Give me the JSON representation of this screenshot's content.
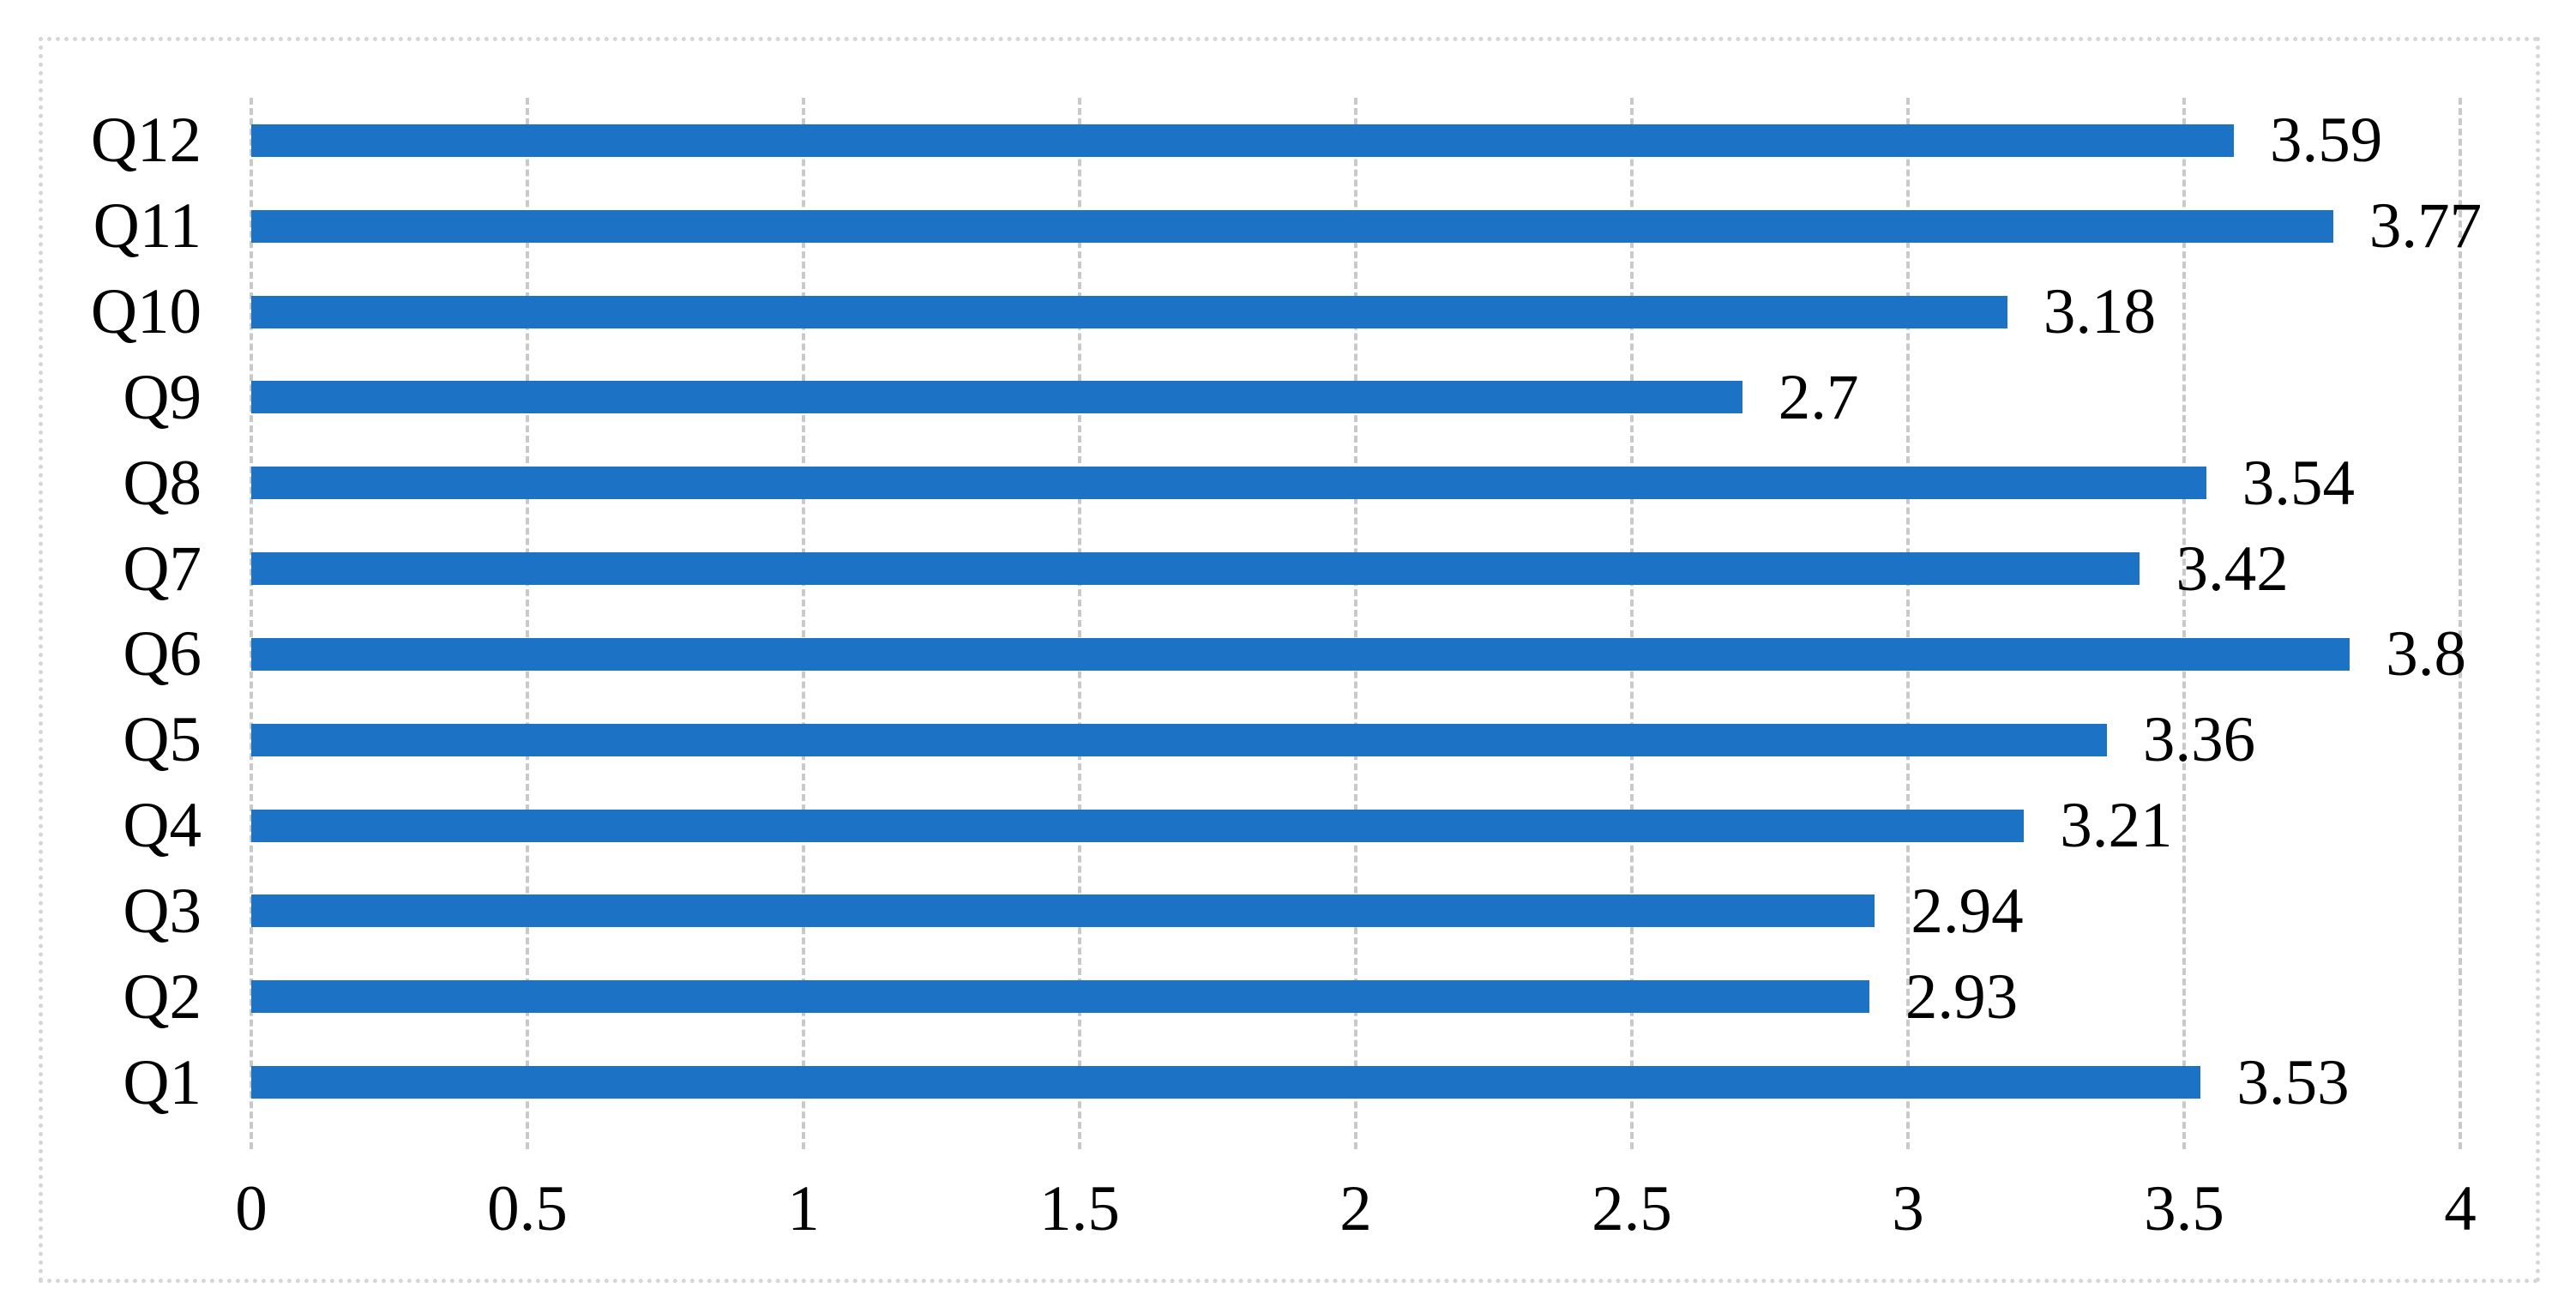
{
  "figure": {
    "background": "#ffffff",
    "border_color": "#d6d6d6"
  },
  "chart_data": {
    "type": "bar",
    "orientation": "horizontal",
    "title": "",
    "xlabel": "",
    "ylabel": "",
    "categories": [
      "Q1",
      "Q2",
      "Q3",
      "Q4",
      "Q5",
      "Q6",
      "Q7",
      "Q8",
      "Q9",
      "Q10",
      "Q11",
      "Q12"
    ],
    "values": [
      3.53,
      2.93,
      2.94,
      3.21,
      3.36,
      3.8,
      3.42,
      3.54,
      2.7,
      3.18,
      3.77,
      3.59
    ],
    "data_labels": [
      "3.53",
      "2.93",
      "2.94",
      "3.21",
      "3.36",
      "3.8",
      "3.42",
      "3.54",
      "2.7",
      "3.18",
      "3.77",
      "3.59"
    ],
    "category_display_order": "first-category-at-bottom",
    "xlim": [
      0,
      4
    ],
    "x_tick_values": [
      0,
      0.5,
      1,
      1.5,
      2,
      2.5,
      3,
      3.5,
      4
    ],
    "x_tick_labels": [
      "0",
      "0.5",
      "1",
      "1.5",
      "2",
      "2.5",
      "3",
      "3.5",
      "4"
    ],
    "grid": "vertical-dashed",
    "legend": "none",
    "bar_color": "#1c72c5",
    "gridline_color": "#c9c9c9",
    "text_color": "#000000"
  }
}
